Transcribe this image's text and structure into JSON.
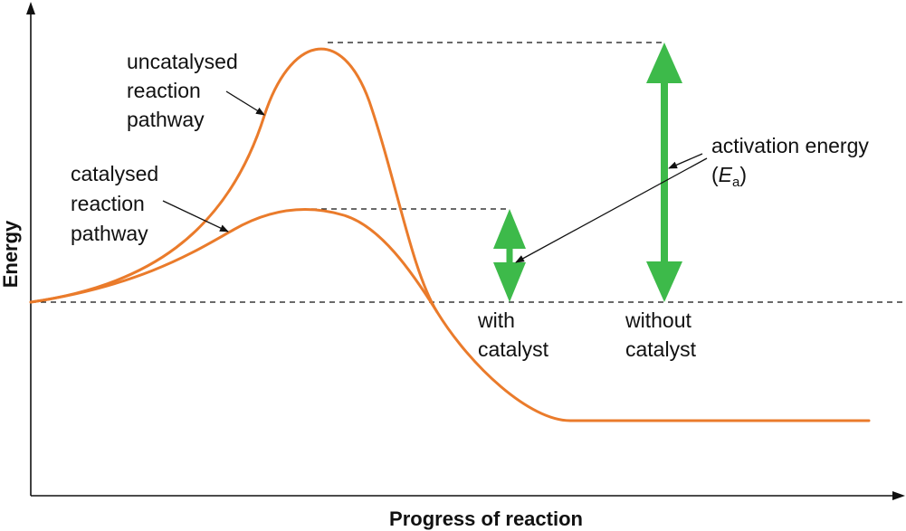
{
  "axes": {
    "x_label": "Progress of reaction",
    "y_label": "Energy"
  },
  "labels": {
    "uncatalysed": [
      "uncatalysed",
      "reaction",
      "pathway"
    ],
    "catalysed": [
      "catalysed",
      "reaction",
      "pathway"
    ],
    "activation_energy": "activation energy",
    "ea_symbol": "E",
    "ea_subscript": "a",
    "with_catalyst": [
      "with",
      "catalyst"
    ],
    "without_catalyst": [
      "without",
      "catalyst"
    ]
  },
  "colors": {
    "curve": "#ea7b2b",
    "arrow": "#3dba4a",
    "line": "#111111"
  }
}
